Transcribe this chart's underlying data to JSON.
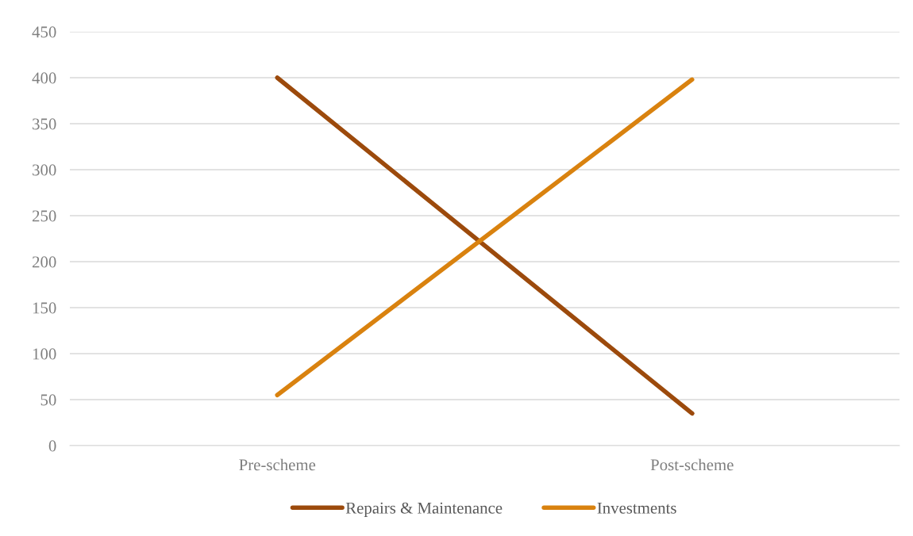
{
  "chart_data": {
    "type": "line",
    "categories": [
      "Pre-scheme",
      "Post-scheme"
    ],
    "series": [
      {
        "name": "Repairs & Maintenance",
        "color": "#9c4a0c",
        "values": [
          400,
          35
        ]
      },
      {
        "name": "Investments",
        "color": "#d9820f",
        "values": [
          55,
          398
        ]
      }
    ],
    "ylim": [
      0,
      450
    ],
    "yticks": [
      0,
      50,
      100,
      150,
      200,
      250,
      300,
      350,
      400,
      450
    ],
    "grid": "y",
    "legend": "bottom",
    "marker": "none",
    "line_style": "solid"
  }
}
